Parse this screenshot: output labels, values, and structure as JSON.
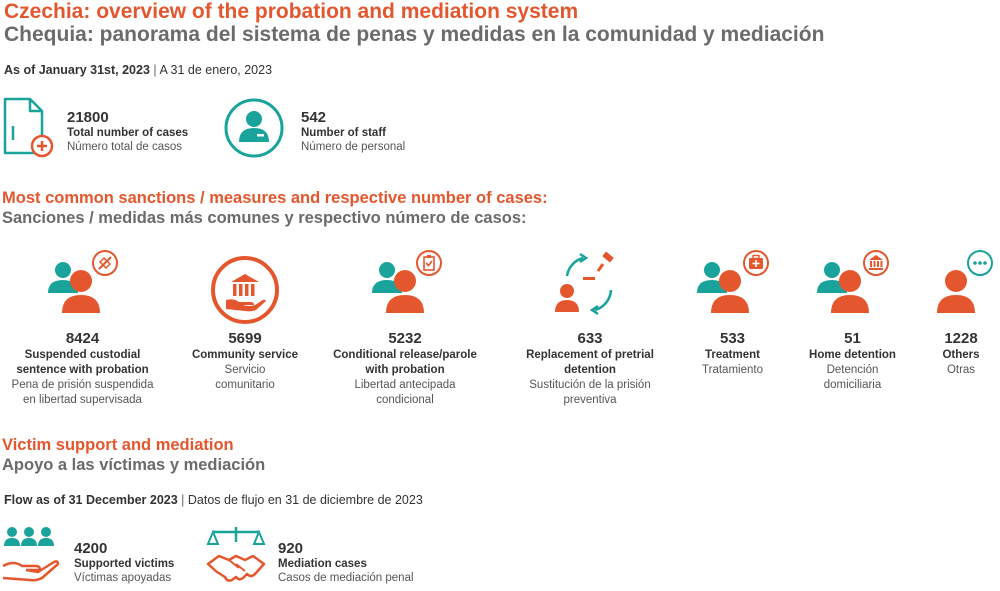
{
  "header": {
    "title_en": "Czechia: overview of the probation and mediation system",
    "title_es": "Chequia: panorama del sistema de penas y medidas en la comunidad y mediación",
    "as_of_en": "As of January 31st, 2023",
    "as_of_sep": " | ",
    "as_of_es": "A 31 de enero, 2023"
  },
  "kpis": {
    "cases": {
      "value": "21800",
      "label_en": "Total number of cases",
      "label_es": "Número total de casos",
      "icon": "document-plus-icon"
    },
    "staff": {
      "value": "542",
      "label_en": "Number of staff",
      "label_es": "Número de personal",
      "icon": "staff-person-icon"
    }
  },
  "sanctions_section": {
    "title_en": "Most common sanctions / measures and respective number of cases:",
    "title_es": "Sanciones / medidas más comunes y respectivo número de casos:",
    "items": [
      {
        "value": "8424",
        "label_en": [
          "Suspended custodial",
          "sentence with probation"
        ],
        "label_es": [
          "Pena de prisión suspendida",
          "en libertad supervisada"
        ],
        "icon": "suspended-sentence-icon"
      },
      {
        "value": "5699",
        "label_en": [
          "Community service"
        ],
        "label_es": [
          "Servicio",
          "comunitario"
        ],
        "icon": "community-service-icon"
      },
      {
        "value": "5232",
        "label_en": [
          "Conditional release/parole",
          "with probation"
        ],
        "label_es": [
          "Libertad antecipada",
          "condicional"
        ],
        "icon": "conditional-release-icon"
      },
      {
        "value": "633",
        "label_en": [
          "Replacement of pretrial",
          "detention"
        ],
        "label_es": [
          "Sustitución de la prisión",
          "preventiva"
        ],
        "icon": "pretrial-replacement-icon"
      },
      {
        "value": "533",
        "label_en": [
          "Treatment"
        ],
        "label_es": [
          "Tratamiento"
        ],
        "icon": "treatment-icon"
      },
      {
        "value": "51",
        "label_en": [
          "Home detention"
        ],
        "label_es": [
          "Detención",
          "domiciliaria"
        ],
        "icon": "home-detention-icon"
      },
      {
        "value": "1228",
        "label_en": [
          "Others"
        ],
        "label_es": [
          "Otras"
        ],
        "icon": "others-icon"
      }
    ]
  },
  "victims_section": {
    "title_en": "Victim support and mediation",
    "title_es": "Apoyo a las víctimas y mediación",
    "flow_en": "Flow as of 31 December 2023",
    "flow_sep": " | ",
    "flow_es": "Datos de flujo en 31 de diciembre de 2023",
    "victims": {
      "value": "4200",
      "label_en": "Supported victims",
      "label_es": "Víctimas apoyadas",
      "icon": "supported-victims-icon"
    },
    "mediation": {
      "value": "920",
      "label_en": "Mediation cases",
      "label_es": "Casos de mediación penal",
      "icon": "mediation-handshake-icon"
    }
  },
  "colors": {
    "accent_orange": "#e4572e",
    "accent_teal": "#1aa39b",
    "heading_gray": "#6b6b6b"
  }
}
